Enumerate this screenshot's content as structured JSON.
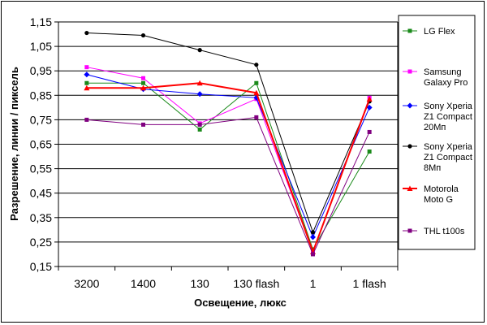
{
  "chart_data": {
    "type": "line",
    "xlabel": "Освещение, люкс",
    "ylabel": "Разрешение, линии / пиксель",
    "categories": [
      "3200",
      "1400",
      "130",
      "130 flash",
      "1",
      "1 flash"
    ],
    "ylim": [
      0.15,
      1.15
    ],
    "yticks": [
      "1,15",
      "1,05",
      "0,95",
      "0,85",
      "0,75",
      "0,65",
      "0,55",
      "0,45",
      "0,35",
      "0,25",
      "0,15"
    ],
    "ytick_values": [
      1.15,
      1.05,
      0.95,
      0.85,
      0.75,
      0.65,
      0.55,
      0.45,
      0.35,
      0.25,
      0.15
    ],
    "grid": "horizontal",
    "legend_position": "right",
    "series": [
      {
        "name": "LG Flex",
        "legend_lines": [
          "LG Flex"
        ],
        "color": "#1a8a1a",
        "marker": "square",
        "width": 1,
        "values": [
          0.9,
          0.9,
          0.71,
          0.9,
          0.22,
          0.62
        ]
      },
      {
        "name": "Samsung Galaxy Pro",
        "legend_lines": [
          "Samsung",
          "Galaxy Pro"
        ],
        "color": "#ff00ff",
        "marker": "square",
        "width": 1,
        "values": [
          0.965,
          0.92,
          0.735,
          0.835,
          0.21,
          0.84
        ]
      },
      {
        "name": "Sony Xperia Z1 Compact 20Мп",
        "legend_lines": [
          "Sony Xperia",
          "Z1 Compact",
          "20Мп"
        ],
        "color": "#0000ff",
        "marker": "diamond",
        "width": 1,
        "values": [
          0.935,
          0.875,
          0.855,
          0.84,
          0.27,
          0.8
        ]
      },
      {
        "name": "Sony Xperia Z1 Compact 8Мп",
        "legend_lines": [
          "Sony Xperia",
          "Z1 Compact",
          "8Мп"
        ],
        "color": "#000000",
        "marker": "circle",
        "width": 1,
        "values": [
          1.105,
          1.095,
          1.035,
          0.975,
          0.29,
          0.825
        ]
      },
      {
        "name": "Motorola Moto G",
        "legend_lines": [
          "Motorola",
          "Moto G"
        ],
        "color": "#ff0000",
        "marker": "triangle",
        "width": 2,
        "values": [
          0.88,
          0.88,
          0.9,
          0.86,
          0.21,
          0.835
        ]
      },
      {
        "name": "THL t100s",
        "legend_lines": [
          "THL t100s"
        ],
        "color": "#800080",
        "marker": "square",
        "width": 1,
        "values": [
          0.75,
          0.73,
          0.73,
          0.76,
          0.2,
          0.7
        ]
      }
    ]
  }
}
